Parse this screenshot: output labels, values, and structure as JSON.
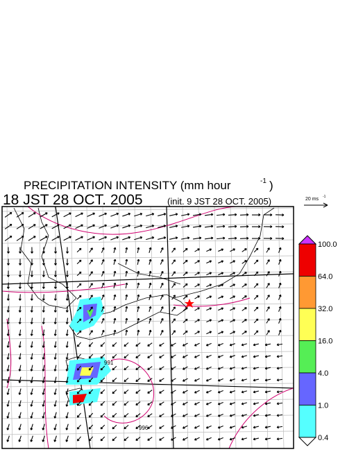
{
  "title": {
    "main": "PRECIPITATION INTENSITY (mm hour",
    "superscript": "-1",
    "close": ")"
  },
  "subtitle": {
    "time": "18 JST 28 OCT. 2005",
    "init": "(init. 9 JST 28 OCT. 2005)"
  },
  "scale": {
    "label": "20 ms",
    "superscript": "-1"
  },
  "colorbar": {
    "labels": [
      "100.0",
      "64.0",
      "32.0",
      "16.0",
      "4.0",
      "1.0",
      "0.4"
    ]
  },
  "contour_labels": [
    "991",
    "996"
  ]
}
